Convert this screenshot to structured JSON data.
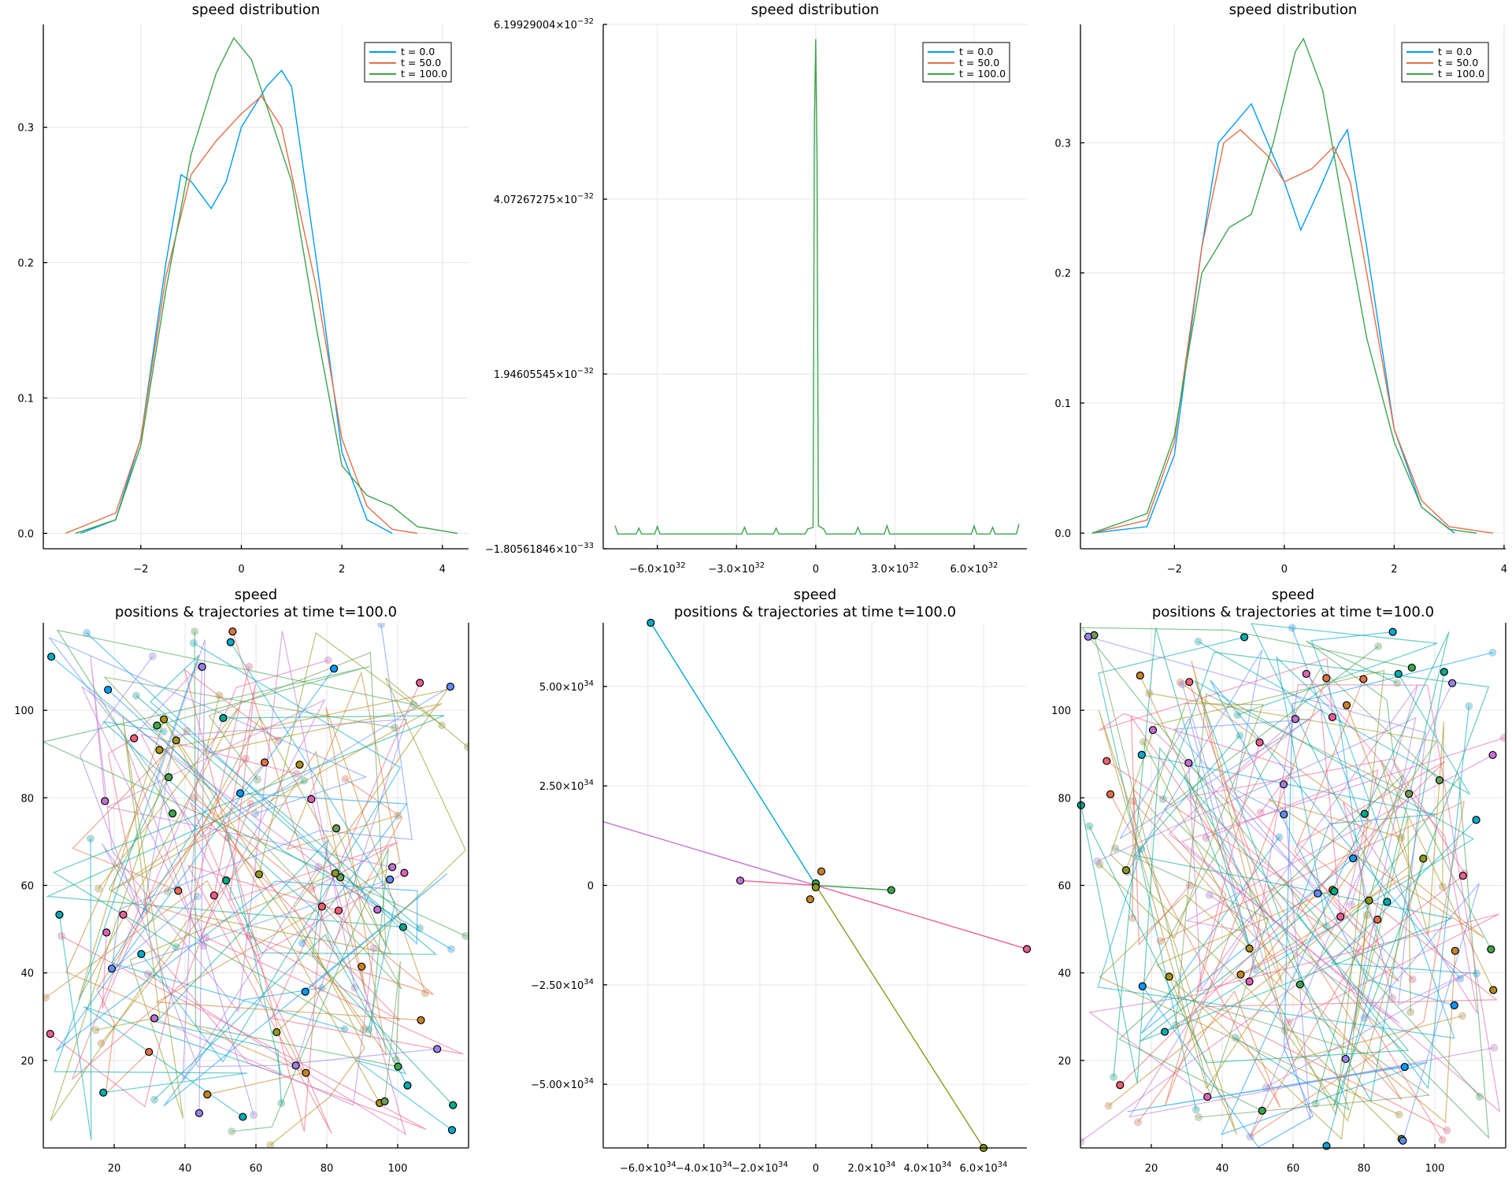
{
  "palette": [
    "#009AFA",
    "#E36F47",
    "#3EA44E",
    "#C371D2",
    "#AC8E18",
    "#00AAAE",
    "#ED5E93",
    "#C68225",
    "#00A98D",
    "#8E971E",
    "#00A9CD",
    "#9B7FE9",
    "#618DF6",
    "#F05F73",
    "#DD64B5",
    "#6B9D59"
  ],
  "chart_data": [
    {
      "id": "dist-left",
      "type": "line",
      "title": "speed distribution",
      "xlim": [
        -3.94,
        4.52
      ],
      "ylim": [
        -0.0114,
        0.376
      ],
      "xticks": [
        {
          "v": -2,
          "label": "−2"
        },
        {
          "v": 0,
          "label": "0"
        },
        {
          "v": 2,
          "label": "2"
        },
        {
          "v": 4,
          "label": "4"
        }
      ],
      "yticks": [
        {
          "v": 0,
          "label": "0.0"
        },
        {
          "v": 0.1,
          "label": "0.1"
        },
        {
          "v": 0.2,
          "label": "0.2"
        },
        {
          "v": 0.3,
          "label": "0.3"
        }
      ],
      "legend": "top-right",
      "series": [
        {
          "name": "t = 0.0",
          "color": "#009AFA",
          "points": [
            [
              -3.2,
              0
            ],
            [
              -2.5,
              0.01
            ],
            [
              -2,
              0.07
            ],
            [
              -1.5,
              0.2
            ],
            [
              -1.2,
              0.265
            ],
            [
              -1,
              0.26
            ],
            [
              -0.6,
              0.24
            ],
            [
              -0.3,
              0.26
            ],
            [
              0,
              0.3
            ],
            [
              0.5,
              0.33
            ],
            [
              0.8,
              0.342
            ],
            [
              1,
              0.33
            ],
            [
              1.5,
              0.2
            ],
            [
              2,
              0.06
            ],
            [
              2.5,
              0.01
            ],
            [
              3,
              0
            ]
          ]
        },
        {
          "name": "t = 50.0",
          "color": "#E36F47",
          "points": [
            [
              -3.5,
              0
            ],
            [
              -2.5,
              0.015
            ],
            [
              -2,
              0.07
            ],
            [
              -1.5,
              0.19
            ],
            [
              -1,
              0.265
            ],
            [
              -0.5,
              0.29
            ],
            [
              0,
              0.31
            ],
            [
              0.4,
              0.323
            ],
            [
              0.8,
              0.3
            ],
            [
              1.5,
              0.18
            ],
            [
              2,
              0.07
            ],
            [
              2.5,
              0.02
            ],
            [
              3,
              0.003
            ],
            [
              3.5,
              0
            ]
          ]
        },
        {
          "name": "t = 100.0",
          "color": "#3EA44E",
          "points": [
            [
              -3.3,
              0
            ],
            [
              -2.5,
              0.01
            ],
            [
              -2,
              0.065
            ],
            [
              -1.5,
              0.18
            ],
            [
              -1,
              0.28
            ],
            [
              -0.5,
              0.34
            ],
            [
              -0.15,
              0.366
            ],
            [
              0.2,
              0.35
            ],
            [
              1,
              0.26
            ],
            [
              1.5,
              0.15
            ],
            [
              2,
              0.05
            ],
            [
              2.5,
              0.028
            ],
            [
              3,
              0.02
            ],
            [
              3.5,
              0.005
            ],
            [
              4.3,
              0
            ]
          ]
        }
      ]
    },
    {
      "id": "dist-middle",
      "type": "line",
      "title": "speed distribution",
      "xlim": [
        -8.05,
        8.0
      ],
      "xunit": "1e32",
      "ylim": [
        -0.180561846,
        6.19929004
      ],
      "yunit": "1e-32",
      "xticks": [
        {
          "v": -6,
          "label": "−6.0×10",
          "exp": "32"
        },
        {
          "v": -3,
          "label": "−3.0×10",
          "exp": "32"
        },
        {
          "v": 0,
          "label": "0"
        },
        {
          "v": 3,
          "label": "3.0×10",
          "exp": "32"
        },
        {
          "v": 6,
          "label": "6.0×10",
          "exp": "32"
        }
      ],
      "yticks": [
        {
          "v": 6.19929004,
          "label": "6.19929004×10",
          "exp": "−32"
        },
        {
          "v": 4.07267275,
          "label": "4.07267275×10",
          "exp": "−32"
        },
        {
          "v": 1.94605545,
          "label": "1.94605545×10",
          "exp": "−32"
        },
        {
          "v": -0.180561846,
          "label": "−1.80561846×10",
          "exp": "−33"
        }
      ],
      "legend": "top-right",
      "series": [
        {
          "name": "t = 0.0",
          "color": "#009AFA",
          "points": []
        },
        {
          "name": "t = 50.0",
          "color": "#E36F47",
          "points": []
        },
        {
          "name": "t = 100.0",
          "color": "#3EA44E",
          "points": [
            [
              -7.6,
              0.1
            ],
            [
              -7.5,
              0.0
            ],
            [
              -6.8,
              0.0
            ],
            [
              -6.7,
              0.07
            ],
            [
              -6.6,
              0.0
            ],
            [
              -6.1,
              0.0
            ],
            [
              -6.0,
              0.09
            ],
            [
              -5.9,
              0.0
            ],
            [
              -2.8,
              0.0
            ],
            [
              -2.7,
              0.08
            ],
            [
              -2.6,
              0.0
            ],
            [
              -1.6,
              0.0
            ],
            [
              -1.5,
              0.07
            ],
            [
              -1.4,
              0.0
            ],
            [
              -0.4,
              0.0
            ],
            [
              -0.3,
              0.06
            ],
            [
              -0.1,
              0.08
            ],
            [
              -0.05,
              5.0
            ],
            [
              0,
              6.02
            ],
            [
              0.05,
              4.6
            ],
            [
              0.1,
              0.1
            ],
            [
              0.3,
              0.06
            ],
            [
              0.4,
              0.0
            ],
            [
              1.5,
              0.0
            ],
            [
              1.6,
              0.08
            ],
            [
              1.7,
              0.0
            ],
            [
              2.6,
              0.0
            ],
            [
              2.7,
              0.1
            ],
            [
              2.8,
              0.0
            ],
            [
              5.9,
              0.0
            ],
            [
              6.0,
              0.1
            ],
            [
              6.1,
              0.0
            ],
            [
              6.6,
              0.0
            ],
            [
              6.7,
              0.08
            ],
            [
              6.8,
              0.0
            ],
            [
              7.6,
              0.0
            ],
            [
              7.7,
              0.12
            ]
          ]
        }
      ]
    },
    {
      "id": "dist-right",
      "type": "line",
      "title": "speed distribution",
      "xlim": [
        -3.71,
        4.03
      ],
      "ylim": [
        -0.012,
        0.391
      ],
      "xticks": [
        {
          "v": -2,
          "label": "−2"
        },
        {
          "v": 0,
          "label": "0"
        },
        {
          "v": 2,
          "label": "2"
        },
        {
          "v": 4,
          "label": "4"
        }
      ],
      "yticks": [
        {
          "v": 0,
          "label": "0.0"
        },
        {
          "v": 0.1,
          "label": "0.1"
        },
        {
          "v": 0.2,
          "label": "0.2"
        },
        {
          "v": 0.3,
          "label": "0.3"
        }
      ],
      "legend": "top-right",
      "series": [
        {
          "name": "t = 0.0",
          "color": "#009AFA",
          "points": [
            [
              -3.5,
              0
            ],
            [
              -2.5,
              0.005
            ],
            [
              -2,
              0.06
            ],
            [
              -1.5,
              0.22
            ],
            [
              -1.2,
              0.3
            ],
            [
              -0.6,
              0.33
            ],
            [
              0,
              0.27
            ],
            [
              0.3,
              0.233
            ],
            [
              0.7,
              0.27
            ],
            [
              1.0,
              0.3
            ],
            [
              1.15,
              0.31
            ],
            [
              1.5,
              0.22
            ],
            [
              2,
              0.08
            ],
            [
              2.5,
              0.02
            ],
            [
              3.1,
              0
            ]
          ]
        },
        {
          "name": "t = 50.0",
          "color": "#E36F47",
          "points": [
            [
              -3.5,
              0
            ],
            [
              -2.5,
              0.01
            ],
            [
              -2,
              0.07
            ],
            [
              -1.5,
              0.22
            ],
            [
              -1.1,
              0.3
            ],
            [
              -0.8,
              0.31
            ],
            [
              -0.3,
              0.29
            ],
            [
              0,
              0.27
            ],
            [
              0.5,
              0.28
            ],
            [
              0.9,
              0.297
            ],
            [
              1.2,
              0.27
            ],
            [
              1.5,
              0.2
            ],
            [
              2,
              0.08
            ],
            [
              2.5,
              0.025
            ],
            [
              3,
              0.005
            ],
            [
              3.8,
              0
            ]
          ]
        },
        {
          "name": "t = 100.0",
          "color": "#3EA44E",
          "points": [
            [
              -3.5,
              0
            ],
            [
              -2.5,
              0.015
            ],
            [
              -2,
              0.075
            ],
            [
              -1.5,
              0.2
            ],
            [
              -1,
              0.235
            ],
            [
              -0.6,
              0.245
            ],
            [
              -0.2,
              0.3
            ],
            [
              0.2,
              0.37
            ],
            [
              0.35,
              0.38
            ],
            [
              0.7,
              0.34
            ],
            [
              1.2,
              0.22
            ],
            [
              1.5,
              0.15
            ],
            [
              2,
              0.07
            ],
            [
              2.5,
              0.02
            ],
            [
              3,
              0.003
            ],
            [
              3.5,
              0
            ]
          ]
        }
      ]
    },
    {
      "id": "pos-left",
      "type": "scatter",
      "title": "speed",
      "subtitle": "positions & trajectories at time t=100.0",
      "xlim": [
        0,
        120
      ],
      "ylim": [
        0,
        120
      ],
      "particles": 60,
      "xticks": [
        {
          "v": 20,
          "label": "20"
        },
        {
          "v": 40,
          "label": "40"
        },
        {
          "v": 60,
          "label": "60"
        },
        {
          "v": 80,
          "label": "80"
        },
        {
          "v": 100,
          "label": "100"
        }
      ],
      "yticks": [
        {
          "v": 20,
          "label": "20"
        },
        {
          "v": 40,
          "label": "40"
        },
        {
          "v": 60,
          "label": "60"
        },
        {
          "v": 80,
          "label": "80"
        },
        {
          "v": 100,
          "label": "100"
        }
      ]
    },
    {
      "id": "pos-middle",
      "type": "scatter",
      "title": "speed",
      "subtitle": "positions & trajectories at time t=100.0",
      "xlim": [
        -7.6,
        7.55
      ],
      "xunit": "1e34",
      "ylim": [
        -6.6,
        6.6
      ],
      "yunit": "1e34",
      "xticks": [
        {
          "v": -6,
          "label": "−6.0×10",
          "exp": "34"
        },
        {
          "v": -4,
          "label": "−4.0×10",
          "exp": "34"
        },
        {
          "v": -2,
          "label": "−2.0×10",
          "exp": "34"
        },
        {
          "v": 0,
          "label": "0"
        },
        {
          "v": 2,
          "label": "2.0×10",
          "exp": "34"
        },
        {
          "v": 4,
          "label": "4.0×10",
          "exp": "34"
        },
        {
          "v": 6,
          "label": "6.0×10",
          "exp": "34"
        }
      ],
      "yticks": [
        {
          "v": 5,
          "label": "5.00×10",
          "exp": "34"
        },
        {
          "v": 2.5,
          "label": "2.50×10",
          "exp": "34"
        },
        {
          "v": 0,
          "label": "0"
        },
        {
          "v": -2.5,
          "label": "−2.50×10",
          "exp": "34"
        },
        {
          "v": -5,
          "label": "−5.00×10",
          "exp": "34"
        }
      ],
      "trajectories": [
        {
          "color": "#00A9CD",
          "points": [
            [
              0,
              0
            ],
            [
              -5.9,
              6.6
            ]
          ]
        },
        {
          "color": "#C371D2",
          "points": [
            [
              -7.6,
              1.6
            ],
            [
              0,
              0
            ]
          ]
        },
        {
          "color": "#ED5E93",
          "points": [
            [
              -2.7,
              0.12
            ],
            [
              0,
              0
            ],
            [
              7.55,
              -1.6
            ]
          ]
        },
        {
          "color": "#8E971E",
          "points": [
            [
              0,
              0
            ],
            [
              6.0,
              -6.6
            ]
          ]
        },
        {
          "color": "#3EA44E",
          "points": [
            [
              0,
              0
            ],
            [
              2.7,
              -0.12
            ]
          ]
        }
      ],
      "markers": [
        {
          "color": "#00A9CD",
          "x": -5.9,
          "y": 6.6
        },
        {
          "color": "#C371D2",
          "x": -2.7,
          "y": 0.12
        },
        {
          "color": "#ED5E93",
          "x": 7.55,
          "y": -1.6
        },
        {
          "color": "#8E971E",
          "x": 6.0,
          "y": -6.6
        },
        {
          "color": "#3EA44E",
          "x": 2.7,
          "y": -0.12
        },
        {
          "color": "#C68225",
          "x": 0.2,
          "y": 0.35
        },
        {
          "color": "#C68225",
          "x": -0.2,
          "y": -0.35
        },
        {
          "color": "#3EA44E",
          "x": 0,
          "y": 0.05
        },
        {
          "color": "#8E971E",
          "x": 0,
          "y": -0.05
        }
      ]
    },
    {
      "id": "pos-right",
      "type": "scatter",
      "title": "speed",
      "subtitle": "positions & trajectories at time t=100.0",
      "xlim": [
        0,
        120
      ],
      "ylim": [
        0,
        120
      ],
      "particles": 60,
      "xticks": [
        {
          "v": 20,
          "label": "20"
        },
        {
          "v": 40,
          "label": "40"
        },
        {
          "v": 60,
          "label": "60"
        },
        {
          "v": 80,
          "label": "80"
        },
        {
          "v": 100,
          "label": "100"
        }
      ],
      "yticks": [
        {
          "v": 20,
          "label": "20"
        },
        {
          "v": 40,
          "label": "40"
        },
        {
          "v": 60,
          "label": "60"
        },
        {
          "v": 80,
          "label": "80"
        },
        {
          "v": 100,
          "label": "100"
        }
      ]
    }
  ]
}
